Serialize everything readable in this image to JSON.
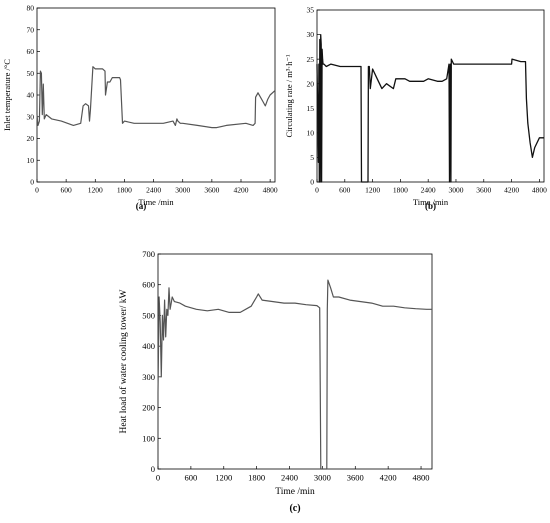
{
  "chart_data": [
    {
      "type": "line",
      "panel_label": "(a)",
      "xlabel": "Time /min",
      "ylabel": "Inlet temperature /°C",
      "xlim": [
        0,
        4900
      ],
      "ylim": [
        0,
        80
      ],
      "xticks": [
        0,
        600,
        1200,
        1800,
        2400,
        3000,
        3600,
        4200,
        4800
      ],
      "yticks": [
        0,
        10,
        20,
        30,
        40,
        50,
        60,
        70,
        80
      ],
      "grid": false,
      "series": [
        {
          "x": [
            0,
            20,
            50,
            70,
            90,
            110,
            130,
            150,
            190,
            300,
            500,
            750,
            900,
            950,
            1000,
            1060,
            1080,
            1100,
            1150,
            1200,
            1250,
            1350,
            1400,
            1410,
            1450,
            1500,
            1550,
            1650,
            1700,
            1720,
            1760,
            1800,
            2000,
            2300,
            2600,
            2800,
            2850,
            2880,
            2900,
            2950,
            3000,
            3300,
            3600,
            3700,
            3900,
            4300,
            4450,
            4490,
            4500,
            4550,
            4650,
            4700,
            4750,
            4800,
            4900
          ],
          "y": [
            31,
            26,
            28,
            51,
            50,
            31,
            45,
            29,
            31,
            29,
            28,
            26,
            27,
            35,
            36,
            35,
            28,
            33,
            53,
            52,
            52,
            52,
            51,
            40,
            46,
            46,
            48,
            48,
            48,
            47,
            27,
            28,
            27,
            27,
            27,
            28,
            26,
            29,
            28,
            27,
            27,
            26,
            25,
            25,
            26,
            27,
            26,
            27,
            39,
            41,
            37,
            35,
            38,
            40,
            42
          ]
        }
      ]
    },
    {
      "type": "line",
      "panel_label": "(b)",
      "xlabel": "Time /min",
      "ylabel": "Circulating rate / m³·h⁻¹",
      "xlim": [
        0,
        4900
      ],
      "ylim": [
        0,
        35
      ],
      "xticks": [
        0,
        600,
        1200,
        1800,
        2400,
        3000,
        3600,
        4200,
        4800
      ],
      "yticks": [
        0,
        5,
        10,
        15,
        20,
        25,
        30,
        35
      ],
      "grid": false,
      "series": [
        {
          "x": [
            0,
            30,
            40,
            50,
            60,
            70,
            80,
            90,
            100,
            110,
            120,
            130,
            150,
            200,
            300,
            500,
            700,
            900,
            950,
            960,
            970,
            1100,
            1110,
            1130,
            1150,
            1200,
            1300,
            1400,
            1500,
            1650,
            1700,
            1900,
            2000,
            2300,
            2400,
            2600,
            2700,
            2800,
            2850,
            2860,
            2870,
            2880,
            2890,
            2900,
            2950,
            3000,
            3300,
            3600,
            3900,
            4200,
            4210,
            4400,
            4500,
            4520,
            4550,
            4600,
            4650,
            4700,
            4800,
            4900
          ],
          "y": [
            24,
            4,
            24,
            0,
            29,
            0,
            30,
            28,
            0,
            27,
            25,
            24,
            24,
            23.5,
            24,
            23.5,
            23.5,
            23.5,
            23.5,
            0,
            0,
            0,
            23.5,
            23.5,
            19,
            23,
            21,
            19,
            20,
            19,
            21,
            21,
            20.5,
            20.5,
            21,
            20.5,
            20.5,
            21,
            24,
            0,
            22,
            24,
            0,
            25,
            24,
            24,
            24,
            24,
            24,
            24,
            25,
            24.5,
            24.5,
            17,
            12,
            8,
            5,
            7,
            9,
            9
          ]
        }
      ]
    },
    {
      "type": "line",
      "panel_label": "(c)",
      "xlabel": "Time /min",
      "ylabel": "Heat load of water cooling tower/ kW",
      "xlim": [
        0,
        5000
      ],
      "ylim": [
        0,
        700
      ],
      "xticks": [
        0,
        600,
        1200,
        1800,
        2400,
        3000,
        3600,
        4200,
        4800
      ],
      "yticks": [
        0,
        100,
        200,
        300,
        400,
        500,
        600,
        700
      ],
      "grid": false,
      "series": [
        {
          "x": [
            0,
            20,
            40,
            60,
            80,
            100,
            120,
            140,
            160,
            180,
            200,
            220,
            240,
            260,
            300,
            400,
            500,
            700,
            900,
            1100,
            1300,
            1500,
            1700,
            1800,
            1830,
            1900,
            2100,
            2300,
            2500,
            2700,
            2900,
            2950,
            2970,
            2980,
            3080,
            3090,
            3100,
            3150,
            3200,
            3300,
            3500,
            3700,
            3900,
            4100,
            4300,
            4500,
            4700,
            4900,
            5000
          ],
          "y": [
            250,
            560,
            480,
            300,
            500,
            420,
            550,
            430,
            520,
            500,
            590,
            520,
            540,
            560,
            545,
            540,
            530,
            520,
            515,
            520,
            510,
            510,
            530,
            560,
            570,
            550,
            545,
            540,
            540,
            535,
            532,
            525,
            0,
            0,
            0,
            520,
            615,
            590,
            560,
            560,
            550,
            545,
            540,
            530,
            530,
            525,
            522,
            520,
            520
          ]
        }
      ]
    }
  ]
}
